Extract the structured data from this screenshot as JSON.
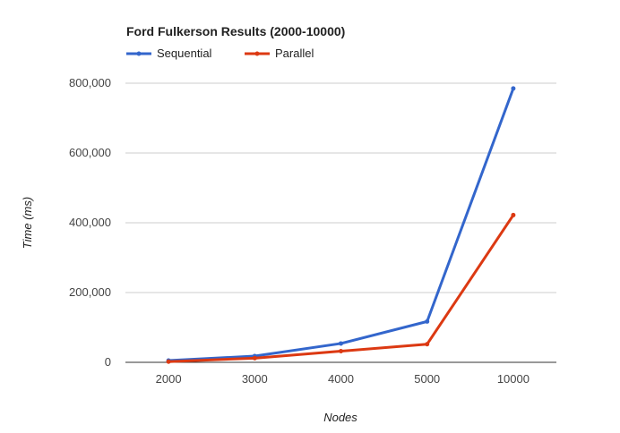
{
  "chart_data": {
    "type": "line",
    "title": "Ford Fulkerson Results (2000-10000)",
    "xlabel": "Nodes",
    "ylabel": "Time (ms)",
    "categories": [
      "2000",
      "3000",
      "4000",
      "5000",
      "10000"
    ],
    "series": [
      {
        "name": "Sequential",
        "color": "#3366cc",
        "values": [
          5000,
          18000,
          54000,
          117000,
          785000
        ]
      },
      {
        "name": "Parallel",
        "color": "#dc3912",
        "values": [
          2000,
          12000,
          32000,
          52000,
          422000
        ]
      }
    ],
    "ylim": [
      0,
      800000
    ],
    "yticks": [
      0,
      200000,
      400000,
      600000,
      800000
    ],
    "ytick_labels": [
      "0",
      "200,000",
      "400,000",
      "600,000",
      "800,000"
    ],
    "grid": true,
    "legend_position": "top-left"
  }
}
